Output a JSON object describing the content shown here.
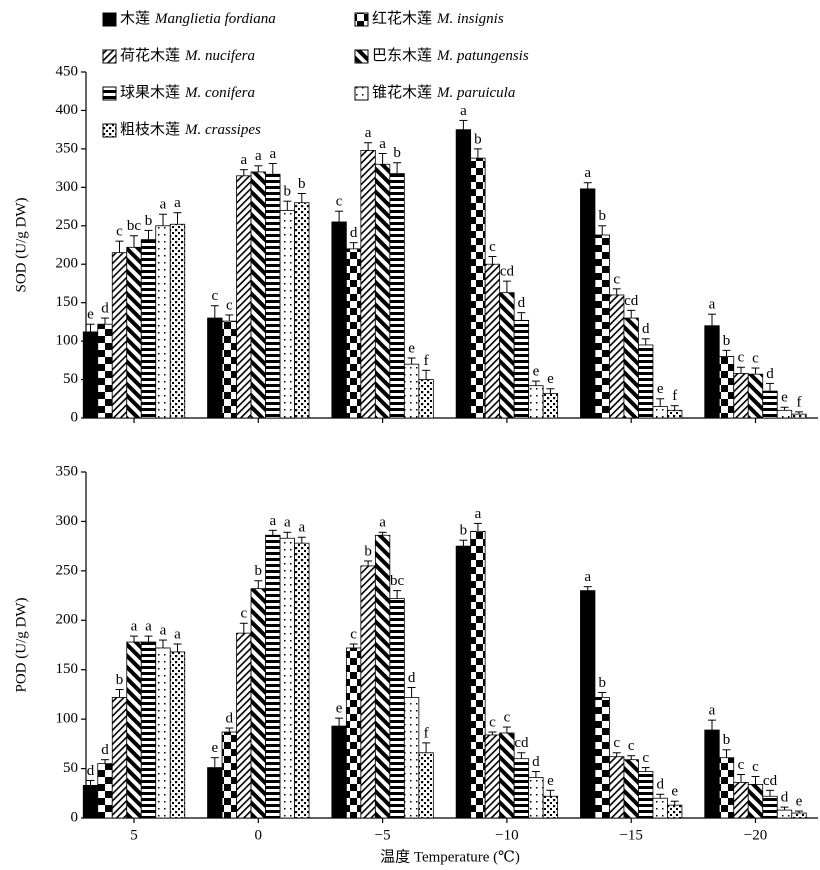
{
  "chart_data": [
    {
      "type": "bar",
      "y_label": "SOD (U/g DW)",
      "ylim": [
        0,
        450
      ],
      "yticks": [
        0,
        50,
        100,
        150,
        200,
        250,
        300,
        350,
        400,
        450
      ],
      "series": [
        {
          "name": "木莲",
          "latin": "Manglietia fordiana",
          "color": "#000000",
          "pattern": "solid",
          "values": [
            112,
            130,
            255,
            375,
            298,
            120
          ],
          "errors": [
            10,
            16,
            14,
            12,
            8,
            15
          ],
          "labels": [
            "e",
            "c",
            "c",
            "a",
            "a",
            "a"
          ]
        },
        {
          "name": "红花木莲",
          "latin": "M. insignis",
          "color": "#000000",
          "pattern": "checker",
          "values": [
            122,
            126,
            220,
            338,
            238,
            80
          ],
          "errors": [
            8,
            8,
            8,
            12,
            12,
            8
          ],
          "labels": [
            "d",
            "c",
            "d",
            "b",
            "b",
            "b"
          ]
        },
        {
          "name": "荷花木莲",
          "latin": "M. nucifera",
          "color": "#000000",
          "pattern": "diag-right",
          "values": [
            215,
            315,
            348,
            200,
            160,
            58
          ],
          "errors": [
            15,
            8,
            10,
            10,
            8,
            8
          ],
          "labels": [
            "c",
            "a",
            "a",
            "c",
            "c",
            "c"
          ]
        },
        {
          "name": "巴东木莲",
          "latin": "M. patungensis",
          "color": "#000000",
          "pattern": "diag-left",
          "values": [
            222,
            320,
            330,
            163,
            130,
            57
          ],
          "errors": [
            15,
            8,
            14,
            15,
            10,
            8
          ],
          "labels": [
            "bc",
            "a",
            "a",
            "cd",
            "cd",
            "c"
          ]
        },
        {
          "name": "球果木莲",
          "latin": "M. conifera",
          "color": "#000000",
          "pattern": "horizontal",
          "values": [
            232,
            317,
            318,
            127,
            95,
            35
          ],
          "errors": [
            12,
            14,
            14,
            10,
            8,
            10
          ],
          "labels": [
            "b",
            "a",
            "b",
            "d",
            "d",
            "d"
          ]
        },
        {
          "name": "锥花木莲",
          "latin": "M. paruicula",
          "color": "#000000",
          "pattern": "dots-sparse",
          "values": [
            250,
            270,
            70,
            42,
            15,
            10
          ],
          "errors": [
            15,
            12,
            8,
            6,
            10,
            4
          ],
          "labels": [
            "a",
            "b",
            "e",
            "e",
            "e",
            "e"
          ]
        },
        {
          "name": "粗枝木莲",
          "latin": "M. crassipes",
          "color": "#000000",
          "pattern": "dots-dense",
          "values": [
            252,
            280,
            50,
            32,
            10,
            5
          ],
          "errors": [
            15,
            12,
            12,
            6,
            6,
            3
          ],
          "labels": [
            "a",
            "b",
            "f",
            "e",
            "f",
            "f"
          ]
        }
      ]
    },
    {
      "type": "bar",
      "y_label": "POD (U/g DW)",
      "x_label": "温度 Temperature (℃)",
      "categories": [
        "5",
        "0",
        "−5",
        "−10",
        "−15",
        "−20"
      ],
      "ylim": [
        0,
        350
      ],
      "yticks": [
        0,
        50,
        100,
        150,
        200,
        250,
        300,
        350
      ],
      "series": [
        {
          "color": "#000000",
          "pattern": "solid",
          "values": [
            33,
            51,
            93,
            275,
            230,
            89
          ],
          "errors": [
            5,
            10,
            8,
            6,
            4,
            10
          ],
          "labels": [
            "d",
            "e",
            "e",
            "b",
            "a",
            "a"
          ]
        },
        {
          "color": "#000000",
          "pattern": "checker",
          "values": [
            55,
            87,
            172,
            290,
            122,
            61
          ],
          "errors": [
            4,
            4,
            4,
            8,
            5,
            8
          ],
          "labels": [
            "d",
            "d",
            "c",
            "a",
            "b",
            "b"
          ]
        },
        {
          "color": "#000000",
          "pattern": "diag-right",
          "values": [
            122,
            187,
            255,
            84,
            62,
            36
          ],
          "errors": [
            8,
            10,
            5,
            3,
            4,
            8
          ],
          "labels": [
            "b",
            "c",
            "b",
            "c",
            "c",
            "c"
          ]
        },
        {
          "color": "#000000",
          "pattern": "diag-left",
          "values": [
            178,
            232,
            286,
            86,
            59,
            34
          ],
          "errors": [
            6,
            8,
            3,
            6,
            4,
            8
          ],
          "labels": [
            "a",
            "b",
            "a",
            "c",
            "c",
            "c"
          ]
        },
        {
          "color": "#000000",
          "pattern": "horizontal",
          "values": [
            178,
            286,
            222,
            60,
            47,
            22
          ],
          "errors": [
            6,
            5,
            8,
            6,
            4,
            6
          ],
          "labels": [
            "a",
            "a",
            "bc",
            "cd",
            "c",
            "cd"
          ]
        },
        {
          "color": "#000000",
          "pattern": "dots-sparse",
          "values": [
            172,
            283,
            122,
            41,
            20,
            8
          ],
          "errors": [
            8,
            6,
            10,
            6,
            4,
            3
          ],
          "labels": [
            "a",
            "a",
            "d",
            "d",
            "d",
            "d"
          ]
        },
        {
          "color": "#000000",
          "pattern": "dots-dense",
          "values": [
            168,
            278,
            66,
            22,
            13,
            5
          ],
          "errors": [
            8,
            6,
            10,
            6,
            4,
            2
          ],
          "labels": [
            "a",
            "a",
            "f",
            "e",
            "e",
            "e"
          ]
        }
      ]
    }
  ]
}
